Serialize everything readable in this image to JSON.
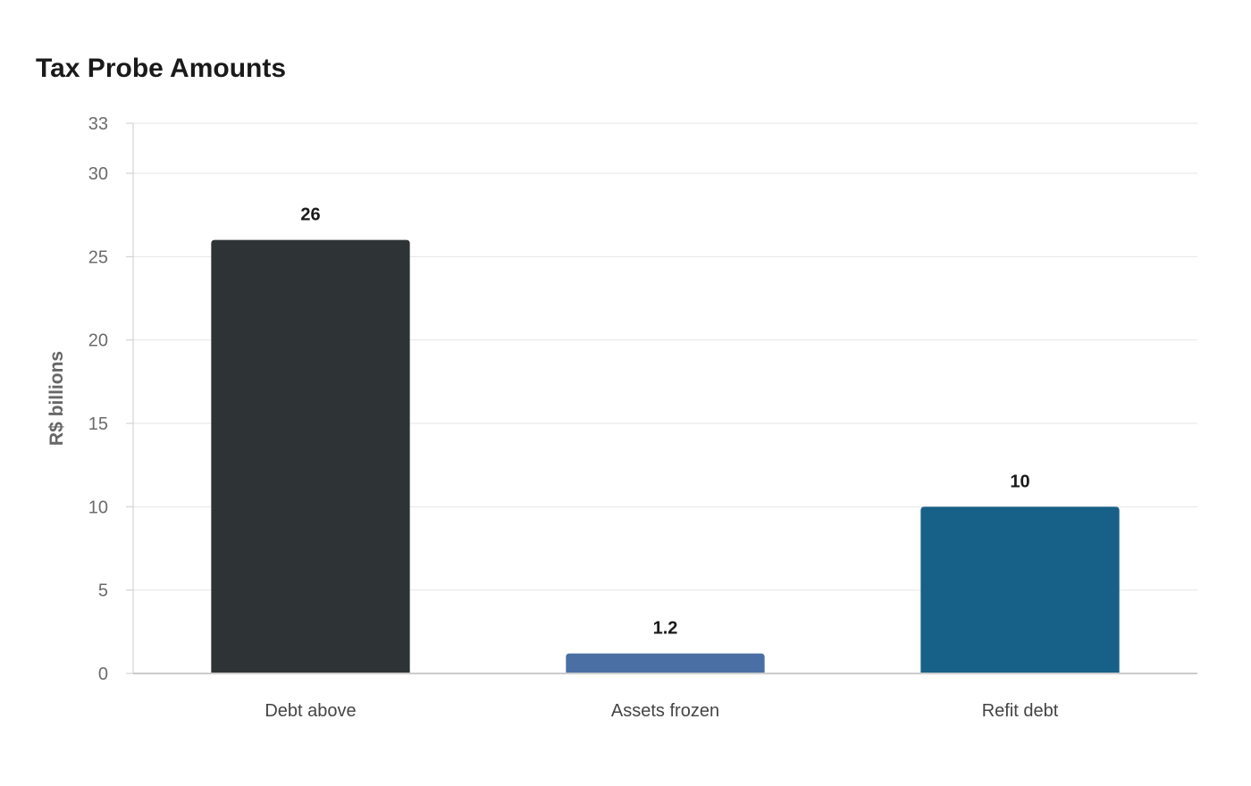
{
  "chart_data": {
    "type": "bar",
    "title": "Tax Probe Amounts",
    "xlabel": "",
    "ylabel": "R$ billions",
    "categories": [
      "Debt above",
      "Assets frozen",
      "Refit debt"
    ],
    "values": [
      26,
      1.2,
      10
    ],
    "value_labels": [
      "26",
      "1.2",
      "10"
    ],
    "colors": [
      "#2e3436",
      "#4a6fa5",
      "#176087"
    ],
    "ylim": [
      0,
      33
    ],
    "yticks": [
      0,
      5,
      10,
      15,
      20,
      25,
      30,
      33
    ],
    "grid": true,
    "legend": "none"
  }
}
